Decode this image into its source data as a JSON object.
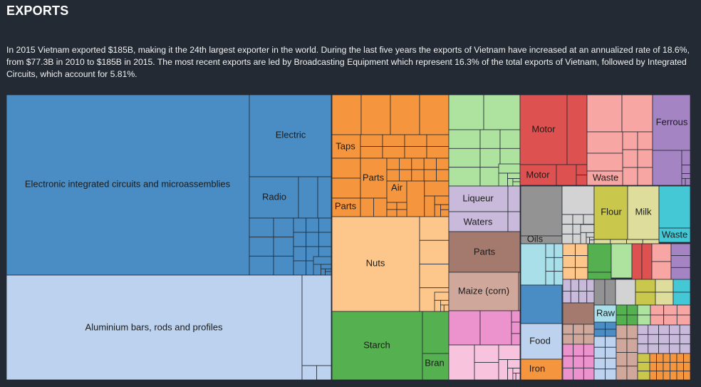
{
  "header": {
    "title": "EXPORTS",
    "description": "In 2015 Vietnam exported $185B, making it the 24th largest exporter in the world. During the last five years the exports of Vietnam have increased at an annualized rate of 18.6%, from $77.3B in 2010 to $185B in 2015. The most recent exports are led by Broadcasting Equipment which represent 16.3% of the total exports of Vietnam, followed by Integrated Circuits, which account for 5.81%."
  },
  "chart_data": {
    "type": "treemap",
    "labels": [
      {
        "name": "Electronic integrated circuits and microassemblies",
        "color": "#4a8dc4"
      },
      {
        "name": "Electric",
        "color": "#4a8dc4"
      },
      {
        "name": "Radio",
        "color": "#4a8dc4"
      },
      {
        "name": "Aluminium bars, rods and profiles",
        "color": "#bcd2ee"
      },
      {
        "name": "Taps",
        "color": "#f5963f"
      },
      {
        "name": "Parts",
        "color": "#f5963f"
      },
      {
        "name": "Air",
        "color": "#f5963f"
      },
      {
        "name": "Parts",
        "color": "#f5963f"
      },
      {
        "name": "Nuts",
        "color": "#fdc68b"
      },
      {
        "name": "Starch",
        "color": "#55b04f"
      },
      {
        "name": "Bran",
        "color": "#55b04f"
      },
      {
        "name": "Liqueur",
        "color": "#c9b9da"
      },
      {
        "name": "Waters",
        "color": "#c9b9da"
      },
      {
        "name": "Parts",
        "color": "#a47a6e"
      },
      {
        "name": "Maize (corn)",
        "color": "#cfa89b"
      },
      {
        "name": "Motor",
        "color": "#dd5150"
      },
      {
        "name": "Motor",
        "color": "#dd5150"
      },
      {
        "name": "Waste",
        "color": "#f7a6a4"
      },
      {
        "name": "Ferrous",
        "color": "#a584c4"
      },
      {
        "name": "Oils",
        "color": "#939393"
      },
      {
        "name": "Flour",
        "color": "#c9c74c"
      },
      {
        "name": "Milk",
        "color": "#dedd9b"
      },
      {
        "name": "Waste",
        "color": "#45c8d6"
      },
      {
        "name": "Raw",
        "color": "#a8dfe9"
      },
      {
        "name": "Food",
        "color": "#bcd2ee"
      },
      {
        "name": "Iron",
        "color": "#f5963f"
      }
    ]
  }
}
